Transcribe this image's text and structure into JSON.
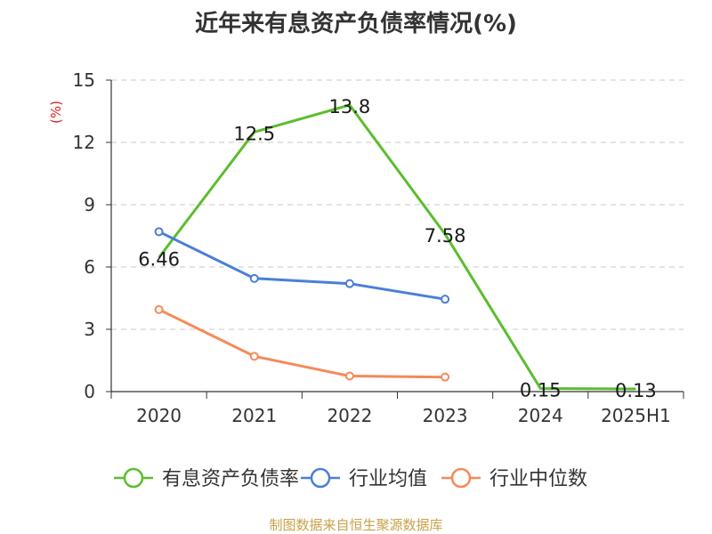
{
  "chart_data": {
    "type": "line",
    "title": "近年来有息资产负债率情况(%)",
    "ylabel": "(%)",
    "ylim": [
      0,
      15
    ],
    "yticks": [
      0,
      3,
      6,
      9,
      12,
      15
    ],
    "grid": true,
    "legend_position": "bottom",
    "categories": [
      "2020",
      "2021",
      "2022",
      "2023",
      "2024",
      "2025H1"
    ],
    "series": [
      {
        "name": "有息资产负债率",
        "color": "#5cbd2e",
        "values": [
          6.46,
          12.5,
          13.8,
          7.58,
          0.15,
          0.13
        ],
        "labels": [
          "6.46",
          "12.5",
          "13.8",
          "7.58",
          "0.15",
          "0.13"
        ],
        "markers": false
      },
      {
        "name": "行业均值",
        "color": "#4a7fd6",
        "values": [
          7.7,
          5.45,
          5.2,
          4.45,
          null,
          null
        ],
        "markers": true
      },
      {
        "name": "行业中位数",
        "color": "#f58a5a",
        "values": [
          3.95,
          1.7,
          0.75,
          0.7,
          null,
          null
        ],
        "markers": true
      }
    ]
  },
  "source": "制图数据来自恒生聚源数据库"
}
